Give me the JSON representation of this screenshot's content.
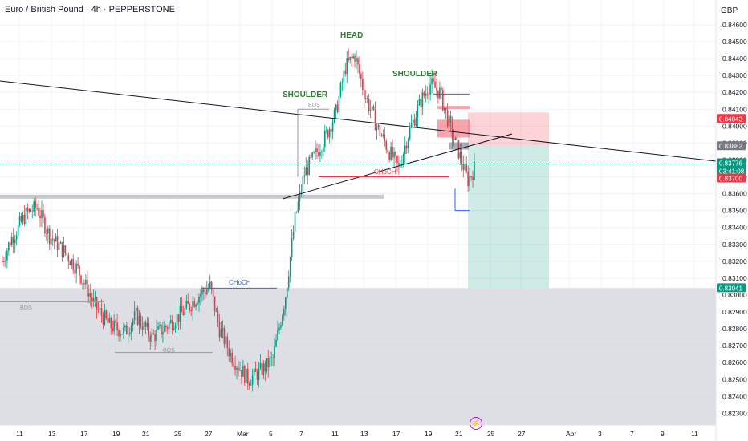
{
  "header": {
    "title": "Euro / British Pound · 4h · PEPPERSTONE",
    "currency": "GBP"
  },
  "chart_data": {
    "type": "candlestick",
    "ylim": [
      0.822,
      0.847
    ],
    "y_ticks": [
      0.846,
      0.845,
      0.844,
      0.843,
      0.842,
      0.841,
      0.84,
      0.839,
      0.838,
      0.837,
      0.836,
      0.835,
      0.834,
      0.833,
      0.832,
      0.831,
      0.83,
      0.829,
      0.828,
      0.827,
      0.826,
      0.825,
      0.824,
      0.823
    ],
    "x_ticks": [
      "11",
      "13",
      "17",
      "19",
      "21",
      "25",
      "27",
      "Mar",
      "5",
      "7",
      "11",
      "13",
      "17",
      "19",
      "21",
      "25",
      "27",
      "Apr",
      "3",
      "7",
      "9",
      "11"
    ],
    "annotations": {
      "head": "HEAD",
      "shoulder_left": "SHOULDER",
      "shoulder_right": "SHOULDER",
      "choch_1": "CHoCH",
      "choch_2": "CHoCH",
      "bos_1": "BOS",
      "bos_2": "BOS",
      "bos_3": "BOS"
    },
    "price_labels": [
      {
        "value": "0.84043",
        "color": "#f23645"
      },
      {
        "value": "0.83882",
        "color": "#787b86"
      },
      {
        "value": "0.83776",
        "color": "#089981"
      },
      {
        "value": "03:41:08",
        "color": "#089981"
      },
      {
        "value": "0.83700",
        "color": "#f23645"
      },
      {
        "value": "0.83041",
        "color": "#089981"
      }
    ],
    "current_price": 0.83776,
    "trade": {
      "stop": 0.84043,
      "entry": 0.83882,
      "target": 0.83041
    },
    "colors": {
      "up": "#089981",
      "down": "#f23645",
      "demand_zone": "#d1d4dc"
    }
  }
}
